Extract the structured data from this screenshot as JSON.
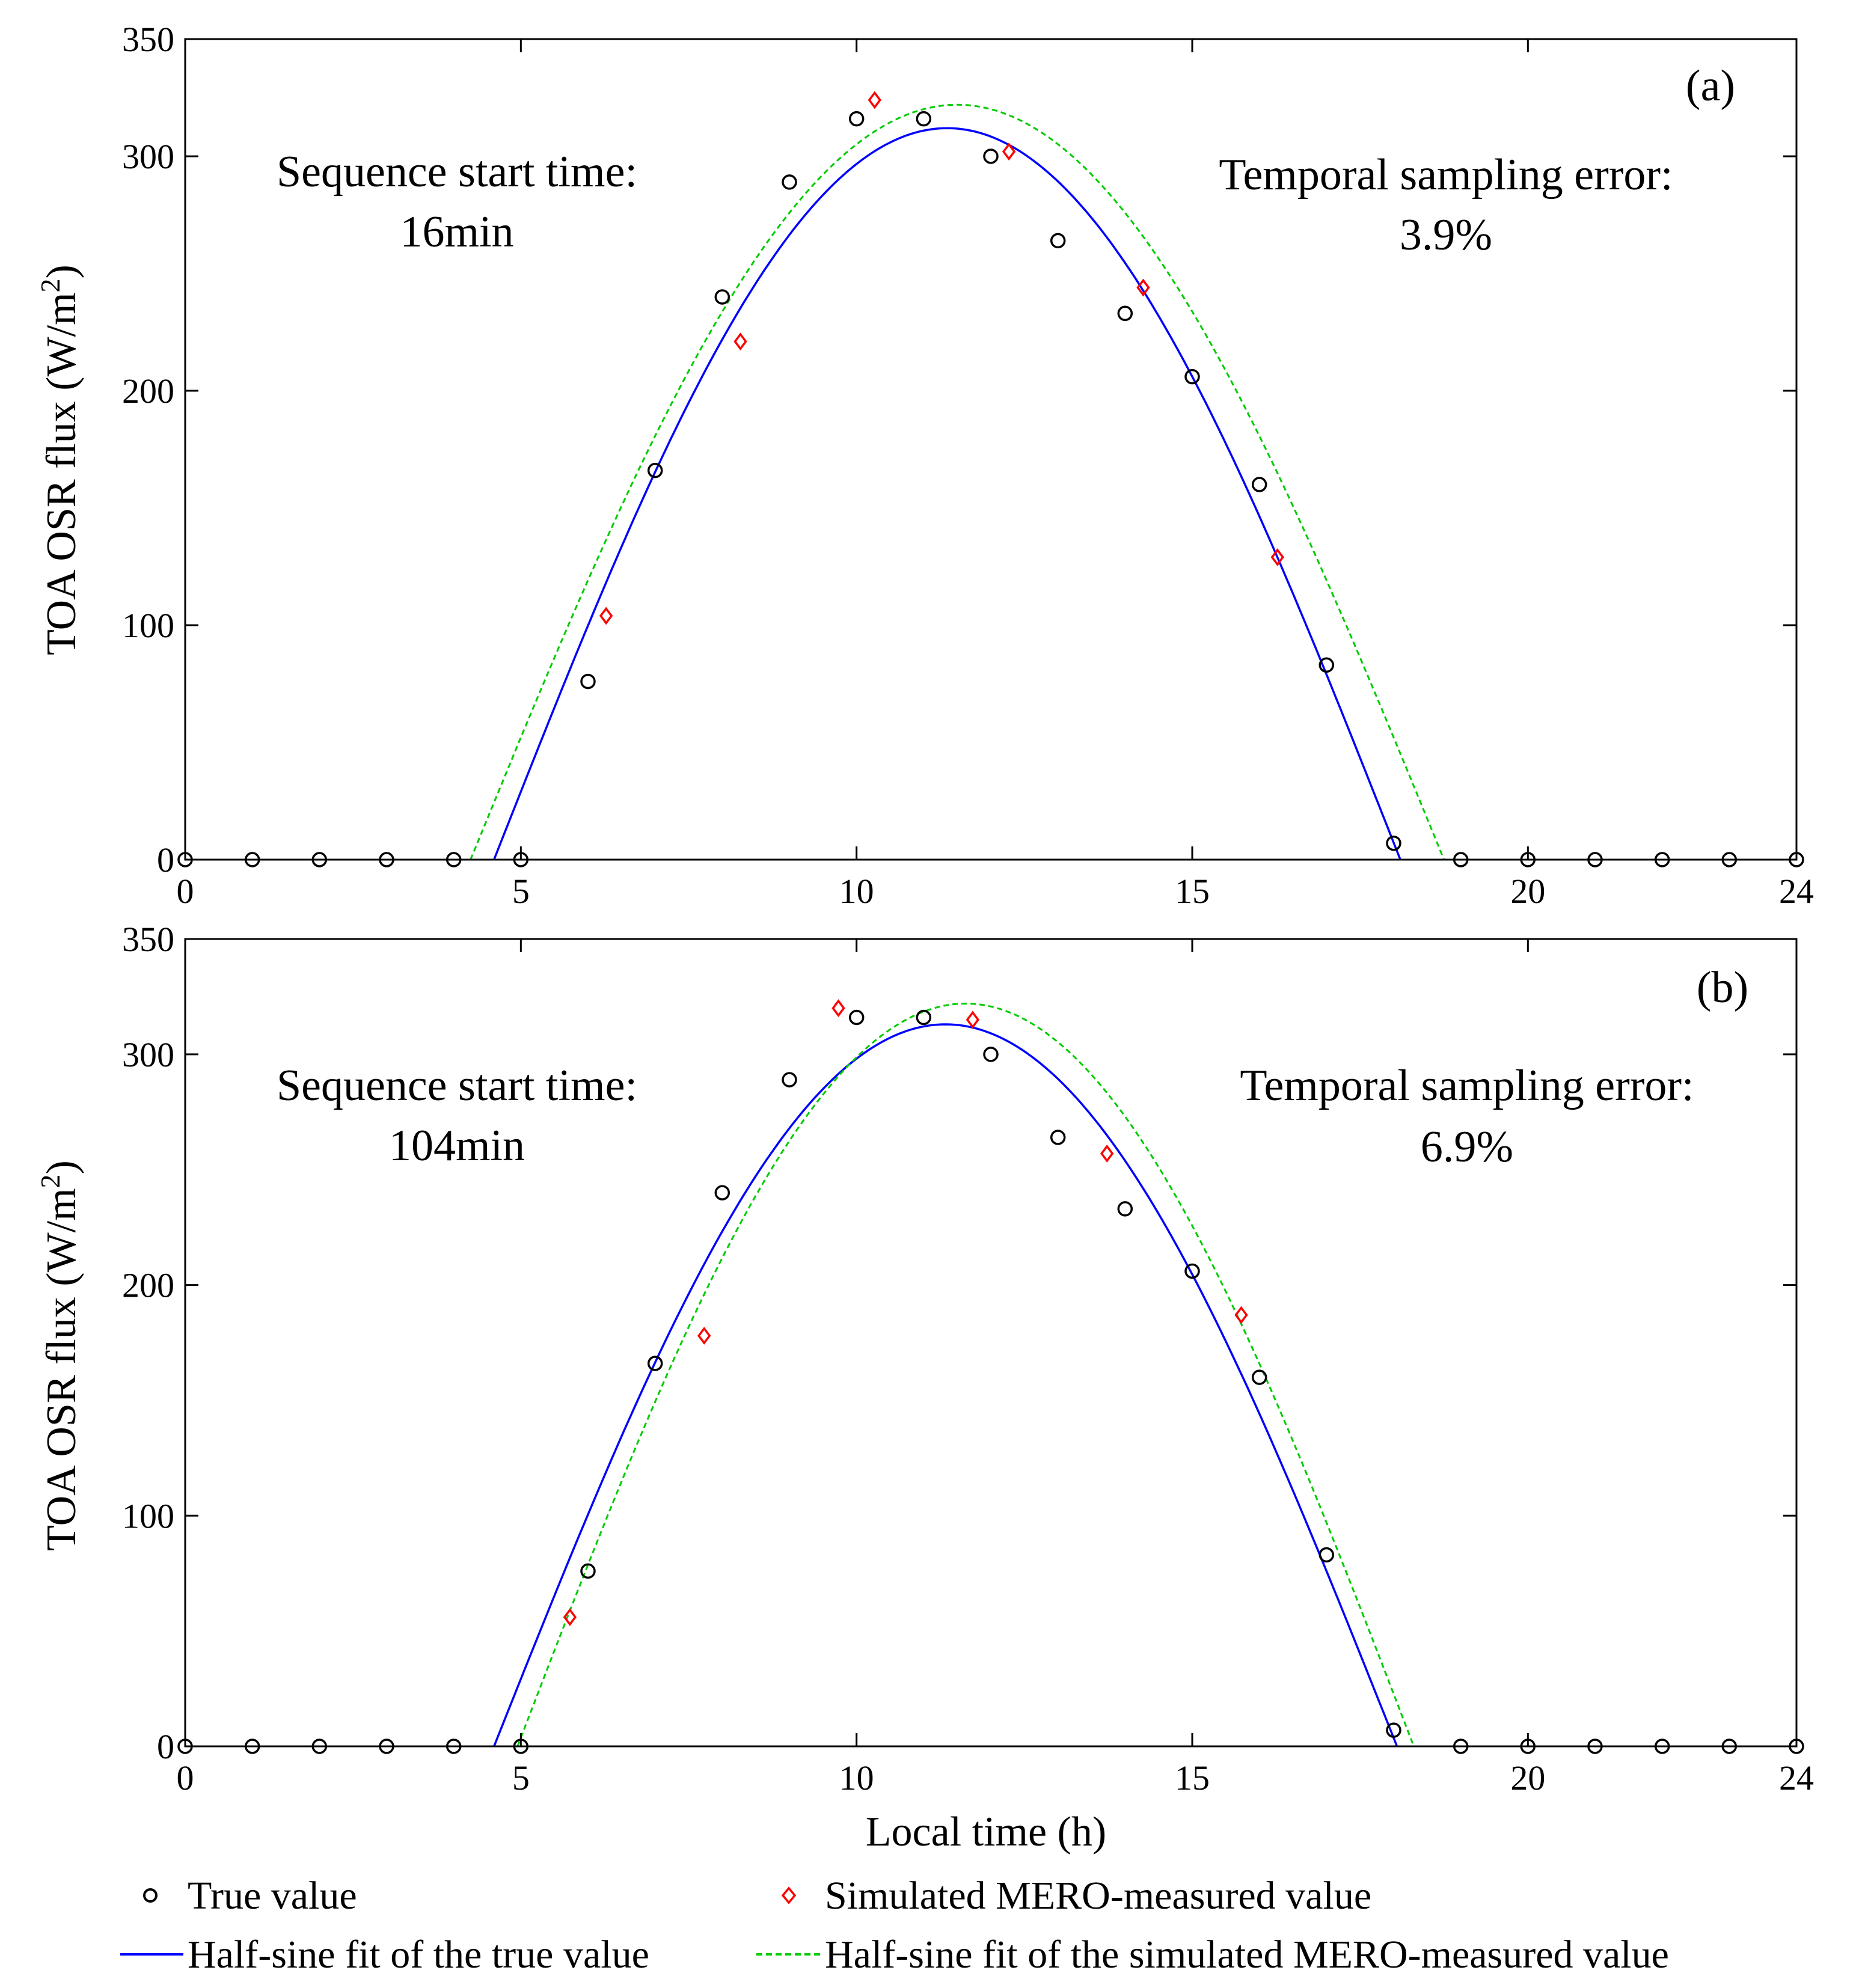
{
  "colors": {
    "true_marker": "#000000",
    "mero_marker": "#ff0000",
    "true_fit": "#0000ff",
    "mero_fit": "#00cc00",
    "axes": "#000000",
    "background": "#ffffff"
  },
  "legend": {
    "true_value": "True value",
    "mero_value": "Simulated MERO-measured value",
    "true_fit": "Half-sine fit of the true value",
    "mero_fit": "Half-sine fit of the simulated MERO-measured value"
  },
  "chart_data": [
    {
      "type": "scatter",
      "panel_label": "(a)",
      "xlabel": "",
      "ylabel": "TOA OSR flux (W/m",
      "ylabel_superscript": "2",
      "ylabel_close": ")",
      "xlim": [
        0,
        24
      ],
      "ylim": [
        0,
        350
      ],
      "xticks": [
        0,
        5,
        10,
        15,
        20,
        24
      ],
      "yticks": [
        0,
        100,
        200,
        300,
        350
      ],
      "grid": false,
      "annotations": {
        "start_title": "Sequence start time:",
        "start_value": "16min",
        "error_title": "Temporal sampling error:",
        "error_value": "3.9%"
      },
      "series": [
        {
          "name": "True value",
          "marker": "circle",
          "x": [
            0,
            1,
            2,
            3,
            4,
            5,
            6,
            7,
            8,
            9,
            10,
            11,
            12,
            13,
            14,
            15,
            16,
            17,
            18,
            19,
            20,
            21,
            22,
            23,
            24
          ],
          "y": [
            0,
            0,
            0,
            0,
            0,
            0,
            76,
            166,
            240,
            289,
            316,
            316,
            300,
            264,
            233,
            206,
            160,
            83,
            7,
            0,
            0,
            0,
            0,
            0,
            0
          ]
        },
        {
          "name": "Simulated MERO-measured value",
          "marker": "diamond",
          "x": [
            6.27,
            8.27,
            10.27,
            12.27,
            14.27,
            16.27
          ],
          "y": [
            104,
            221,
            324,
            302,
            244,
            129
          ]
        },
        {
          "name": "Half-sine fit of the true value",
          "style": "solid",
          "fit": {
            "amplitude": 312,
            "start": 4.6,
            "end": 18.1
          }
        },
        {
          "name": "Half-sine fit of the simulated MERO-measured value",
          "style": "dashed",
          "fit": {
            "amplitude": 322,
            "start": 4.25,
            "end": 18.75
          }
        }
      ]
    },
    {
      "type": "scatter",
      "panel_label": "(b)",
      "xlabel": "Local time (h)",
      "ylabel": "TOA OSR flux (W/m",
      "ylabel_superscript": "2",
      "ylabel_close": ")",
      "xlim": [
        0,
        24
      ],
      "ylim": [
        0,
        350
      ],
      "xticks": [
        0,
        5,
        10,
        15,
        20,
        24
      ],
      "yticks": [
        0,
        100,
        200,
        300,
        350
      ],
      "grid": false,
      "annotations": {
        "start_title": "Sequence start time:",
        "start_value": "104min",
        "error_title": "Temporal sampling error:",
        "error_value": "6.9%"
      },
      "series": [
        {
          "name": "True value",
          "marker": "circle",
          "x": [
            0,
            1,
            2,
            3,
            4,
            5,
            6,
            7,
            8,
            9,
            10,
            11,
            12,
            13,
            14,
            15,
            16,
            17,
            18,
            19,
            20,
            21,
            22,
            23,
            24
          ],
          "y": [
            0,
            0,
            0,
            0,
            0,
            0,
            76,
            166,
            240,
            289,
            316,
            316,
            300,
            264,
            233,
            206,
            160,
            83,
            7,
            0,
            0,
            0,
            0,
            0,
            0
          ]
        },
        {
          "name": "Simulated MERO-measured value",
          "marker": "diamond",
          "x": [
            5.73,
            7.73,
            9.73,
            11.73,
            13.73,
            15.73
          ],
          "y": [
            56,
            178,
            320,
            315,
            257,
            187
          ]
        },
        {
          "name": "Half-sine fit of the true value",
          "style": "solid",
          "fit": {
            "amplitude": 313,
            "start": 4.6,
            "end": 18.05
          }
        },
        {
          "name": "Half-sine fit of the simulated MERO-measured value",
          "style": "dashed",
          "fit": {
            "amplitude": 322,
            "start": 4.95,
            "end": 18.3
          }
        }
      ]
    }
  ]
}
